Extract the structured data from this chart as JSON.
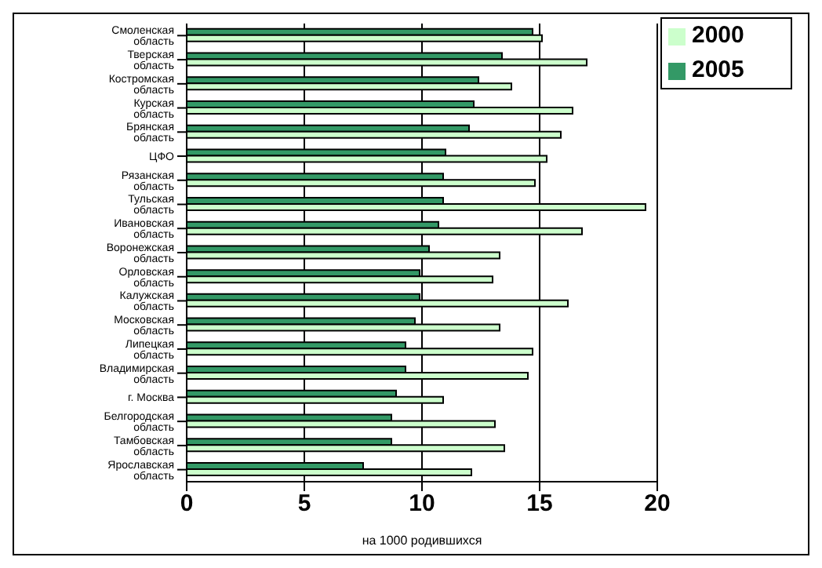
{
  "chart_data": {
    "type": "bar",
    "orientation": "horizontal",
    "xlabel": "на 1000 родившихся",
    "categories": [
      "Смоленская область",
      "Тверская область",
      "Костромская область",
      "Курская область",
      "Брянская область",
      "ЦФО",
      "Рязанская область",
      "Тульская область",
      "Ивановская область",
      "Воронежская область",
      "Орловская область",
      "Калужская область",
      "Московская область",
      "Липецкая область",
      "Владимирская область",
      "г. Москва",
      "Белгородская область",
      "Тамбовская область",
      "Ярославская область"
    ],
    "series": [
      {
        "name": "2005",
        "color": "#339966",
        "values": [
          14.7,
          13.4,
          12.4,
          12.2,
          12.0,
          11.0,
          10.9,
          10.9,
          10.7,
          10.3,
          9.9,
          9.9,
          9.7,
          9.3,
          9.3,
          8.9,
          8.7,
          8.7,
          7.5
        ]
      },
      {
        "name": "2000",
        "color": "#ccffcc",
        "values": [
          15.1,
          17.0,
          13.8,
          16.4,
          15.9,
          15.3,
          14.8,
          19.5,
          16.8,
          13.3,
          13.0,
          16.2,
          13.3,
          14.7,
          14.5,
          10.9,
          13.1,
          13.5,
          12.1
        ]
      }
    ],
    "xlim": [
      0,
      20
    ],
    "xticks": [
      0,
      5,
      10,
      15,
      20
    ],
    "grid": "x",
    "legend": "top right"
  }
}
